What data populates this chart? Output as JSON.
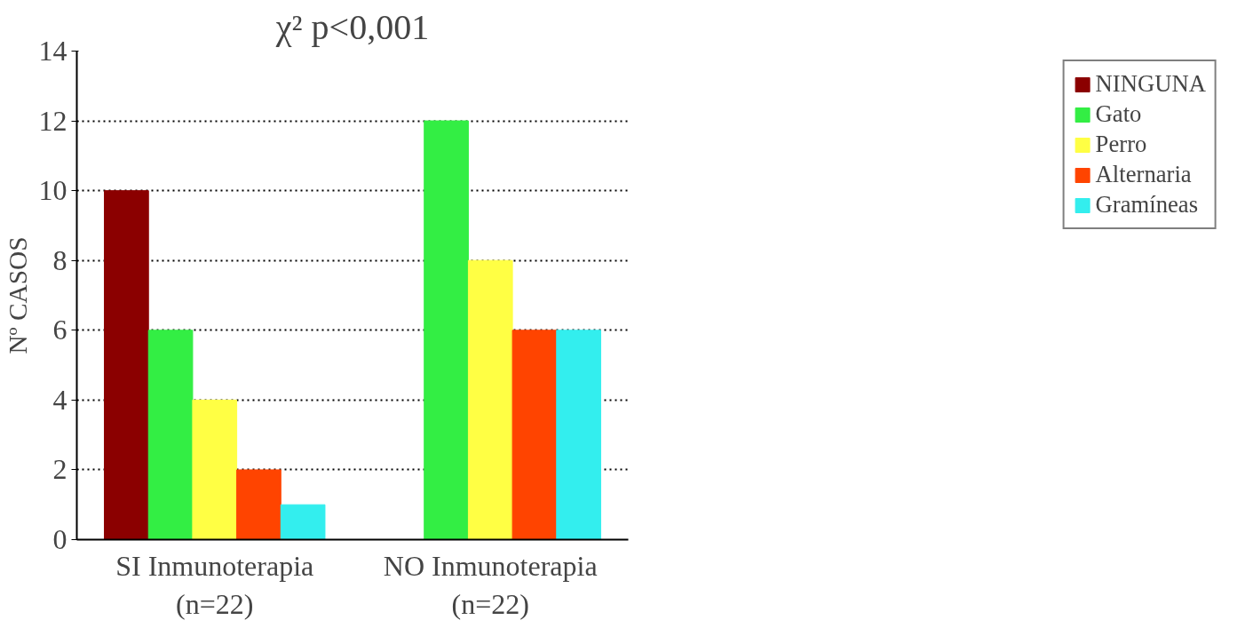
{
  "chart_data": {
    "type": "bar",
    "title": "χ² p<0,001",
    "ylabel": "Nº CASOS",
    "categories": [
      "SI Inmunoterapia\n(n=22)",
      "NO Inmunoterapia\n(n=22)"
    ],
    "series": [
      {
        "name": "NINGUNA",
        "color": "#8b0000",
        "values": [
          10,
          0
        ]
      },
      {
        "name": "Gato",
        "color": "#33ee44",
        "values": [
          6,
          12
        ]
      },
      {
        "name": "Perro",
        "color": "#ffff44",
        "values": [
          4,
          8
        ]
      },
      {
        "name": "Alternaria",
        "color": "#ff4400",
        "values": [
          2,
          6
        ]
      },
      {
        "name": "Gramíneas",
        "color": "#33eeee",
        "values": [
          1,
          6
        ]
      }
    ],
    "ylim": [
      0,
      14
    ],
    "yticks": [
      0,
      2,
      4,
      6,
      8,
      10,
      12,
      14
    ],
    "grid": "y",
    "legend": "right"
  }
}
